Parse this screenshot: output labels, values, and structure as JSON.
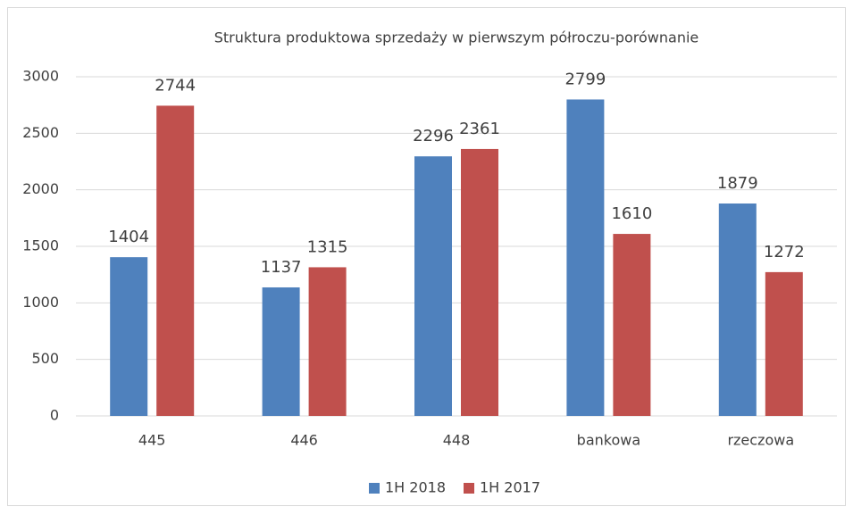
{
  "chart_data": {
    "type": "bar",
    "title": "Struktura produktowa sprzedaży w pierwszym półroczu-porównanie",
    "categories": [
      "445",
      "446",
      "448",
      "bankowa",
      "rzeczowa"
    ],
    "series": [
      {
        "name": "1H 2018",
        "color": "#4f81bd",
        "values": [
          1404,
          1137,
          2296,
          2799,
          1879
        ]
      },
      {
        "name": "1H 2017",
        "color": "#c0504d",
        "values": [
          2744,
          1315,
          2361,
          1610,
          1272
        ]
      }
    ],
    "ylim": [
      0,
      3000
    ],
    "yticks": [
      0,
      500,
      1000,
      1500,
      2000,
      2500,
      3000
    ],
    "grid": true,
    "legend": "bottom"
  }
}
